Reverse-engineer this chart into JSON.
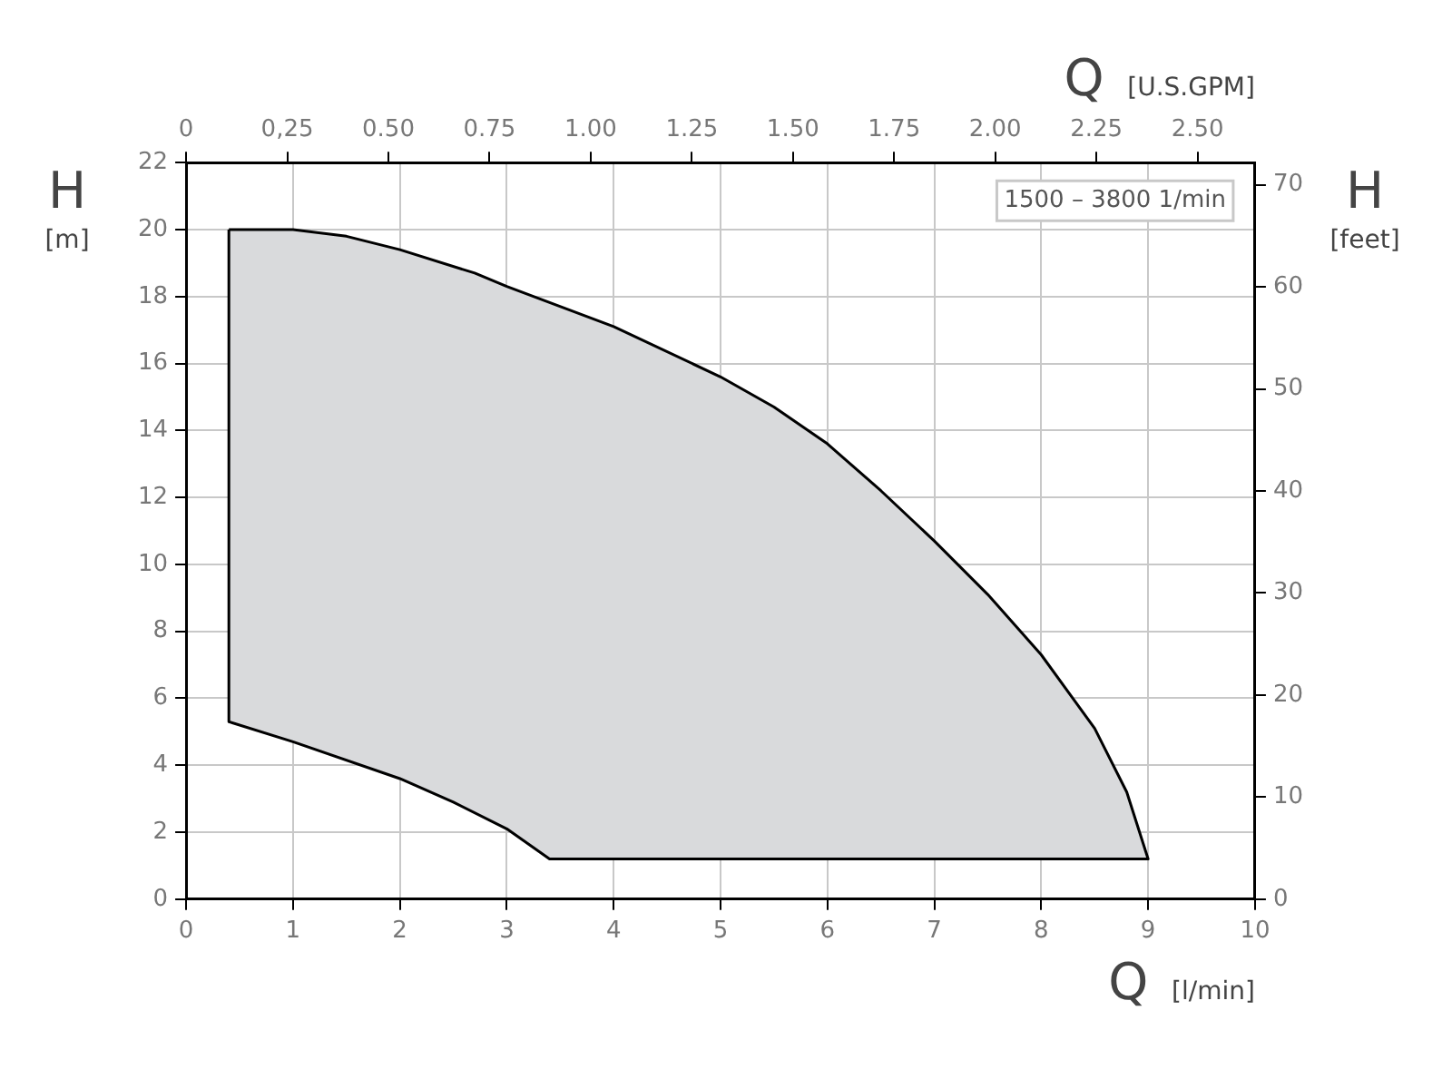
{
  "chart_data": {
    "type": "area",
    "xlabel": "Q [l/min]",
    "x2label": "Q [U.S.GPM]",
    "ylabel": "H [m]",
    "y2label": "H [feet]",
    "annotations": [
      "1500 – 3800 1/min"
    ],
    "series": [
      {
        "color": "#d9dadc",
        "x": [
          0.4,
          1,
          1.5,
          2,
          2.7,
          3,
          4,
          5,
          5.5,
          6,
          6.5,
          7,
          7.5,
          8,
          8.5,
          8.8,
          9,
          3.4,
          3,
          2.5,
          2,
          1,
          0.4,
          0.4
        ],
        "values": [
          20,
          20,
          19.8,
          19.4,
          18.7,
          18.3,
          17.1,
          15.6,
          14.7,
          13.6,
          12.2,
          10.7,
          9.1,
          7.3,
          5.1,
          3.2,
          1.2,
          1.2,
          2.1,
          2.9,
          3.6,
          4.7,
          5.3,
          20
        ]
      }
    ],
    "xlim": [
      0,
      10
    ],
    "xticks": [
      0,
      1,
      2,
      3,
      4,
      5,
      6,
      7,
      8,
      9,
      10
    ],
    "x2lim": [
      0,
      2.642
    ],
    "x2ticks": [
      0,
      {
        "value": 0.25,
        "label": "0,25"
      },
      {
        "value": 0.5,
        "label": "0.50"
      },
      {
        "value": 0.75,
        "label": "0.75"
      },
      {
        "value": 1,
        "label": "1.00"
      },
      {
        "value": 1.25,
        "label": "1.25"
      },
      {
        "value": 1.5,
        "label": "1.50"
      },
      {
        "value": 1.75,
        "label": "1.75"
      },
      {
        "value": 2,
        "label": "2.00"
      },
      {
        "value": 2.25,
        "label": "2.25"
      },
      {
        "value": 2.5,
        "label": "2.50"
      }
    ],
    "ylim": [
      0,
      22
    ],
    "yticks": [
      0,
      2,
      4,
      6,
      8,
      10,
      12,
      14,
      16,
      18,
      20,
      22
    ],
    "y2lim": [
      0,
      72.18
    ],
    "y2ticks": [
      0,
      10,
      20,
      30,
      40,
      50,
      60,
      70
    ],
    "grid": true,
    "legend": false,
    "marker": "none",
    "line_style": "solid"
  }
}
